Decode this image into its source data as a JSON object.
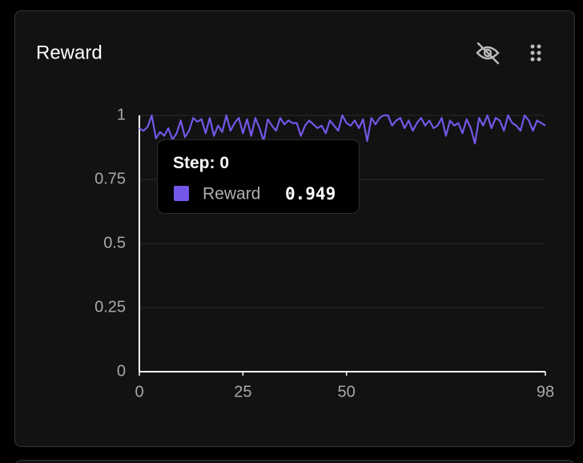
{
  "chart_data": {
    "type": "line",
    "title": "Reward",
    "tooltip_label": "Step:",
    "x": [
      0,
      1,
      2,
      3,
      4,
      5,
      6,
      7,
      8,
      9,
      10,
      11,
      12,
      13,
      14,
      15,
      16,
      17,
      18,
      19,
      20,
      21,
      22,
      23,
      24,
      25,
      26,
      27,
      28,
      29,
      30,
      31,
      32,
      33,
      34,
      35,
      36,
      37,
      38,
      39,
      40,
      41,
      42,
      43,
      44,
      45,
      46,
      47,
      48,
      49,
      50,
      51,
      52,
      53,
      54,
      55,
      56,
      57,
      58,
      59,
      60,
      61,
      62,
      63,
      64,
      65,
      66,
      67,
      68,
      69,
      70,
      71,
      72,
      73,
      74,
      75,
      76,
      77,
      78,
      79,
      80,
      81,
      82,
      83,
      84,
      85,
      86,
      87,
      88,
      89,
      90,
      91,
      92,
      93,
      94,
      95,
      96,
      97,
      98
    ],
    "series": [
      {
        "name": "Reward",
        "color": "#7457e8",
        "values": [
          0.949,
          0.94,
          0.955,
          1.0,
          0.91,
          0.935,
          0.92,
          0.95,
          0.905,
          0.93,
          0.98,
          0.915,
          0.94,
          0.99,
          0.975,
          0.985,
          0.93,
          0.99,
          0.92,
          0.96,
          0.935,
          1.0,
          0.94,
          0.97,
          0.99,
          0.93,
          0.985,
          0.92,
          0.99,
          0.95,
          0.9,
          0.985,
          0.96,
          0.94,
          0.99,
          0.965,
          0.98,
          0.97,
          0.97,
          0.92,
          0.96,
          0.98,
          0.965,
          0.95,
          0.96,
          0.93,
          0.98,
          0.96,
          0.94,
          1.0,
          0.97,
          0.96,
          0.98,
          0.95,
          0.985,
          0.9,
          0.99,
          0.965,
          0.99,
          1.0,
          1.0,
          0.96,
          0.98,
          0.99,
          0.95,
          0.98,
          0.94,
          0.97,
          0.99,
          0.96,
          0.98,
          0.95,
          0.96,
          0.99,
          0.92,
          0.98,
          0.96,
          0.97,
          0.93,
          0.985,
          0.95,
          0.89,
          0.99,
          0.96,
          1.0,
          0.95,
          0.99,
          0.98,
          0.94,
          1.0,
          0.97,
          0.96,
          0.94,
          1.0,
          0.98,
          0.94,
          0.98,
          0.97,
          0.96
        ]
      }
    ],
    "xlim": [
      0,
      98
    ],
    "xticks": [
      0,
      25,
      50,
      98
    ],
    "ylim": [
      0,
      1
    ],
    "yticks": [
      0,
      0.25,
      0.5,
      0.75,
      1
    ],
    "grid": true
  }
}
